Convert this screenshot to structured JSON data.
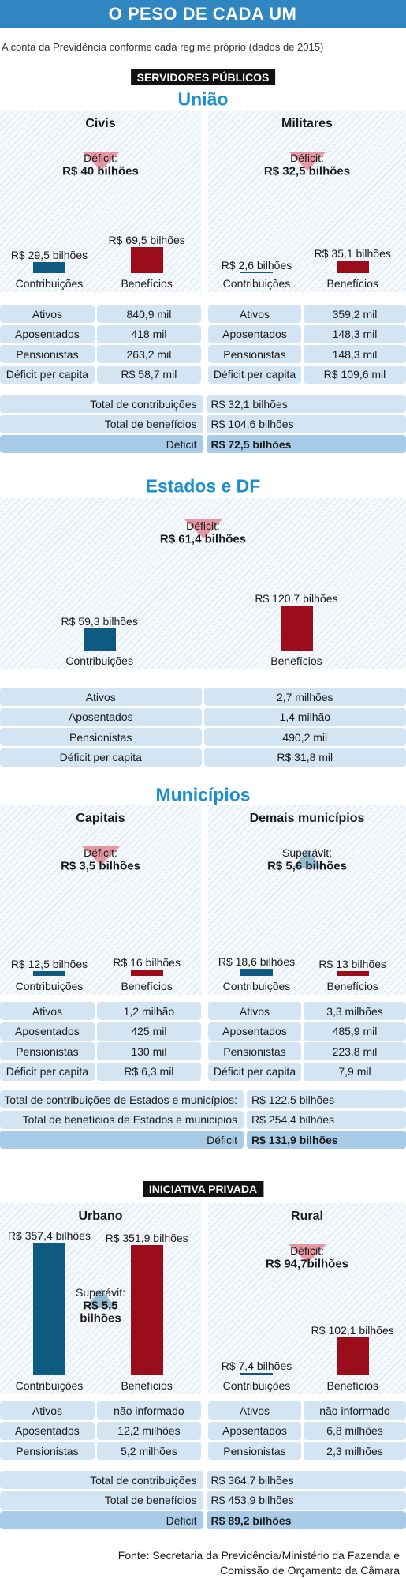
{
  "title": "O PESO DE CADA UM",
  "subtitle": "A conta da Previdência conforme cada regime próprio (dados de 2015)",
  "sections": [
    {
      "banner": "SERVIDORES PÚBLICOS",
      "heading": "União",
      "panels": [
        {
          "name": "Civis",
          "balance_label": "Déficit:",
          "balance_value": "R$ 40 bilhões",
          "contributions": {
            "label": "Contribuições",
            "value": 29.5,
            "value_label": "R$ 29,5 bilhões"
          },
          "benefits": {
            "label": "Benefícios",
            "value": 69.5,
            "value_label": "R$ 69,5 bilhões"
          },
          "rows": [
            [
              "Ativos",
              "840,9 mil"
            ],
            [
              "Aposentados",
              "418 mil"
            ],
            [
              "Pensionistas",
              "263,2 mil"
            ],
            [
              "Déficit per capita",
              "R$ 58,7 mil"
            ]
          ]
        },
        {
          "name": "Militares",
          "balance_label": "Déficit:",
          "balance_value": "R$ 32,5 bilhões",
          "contributions": {
            "label": "Contribuições",
            "value": 2.6,
            "value_label": "R$ 2,6 bilhões"
          },
          "benefits": {
            "label": "Benefícios",
            "value": 35.1,
            "value_label": "R$ 35,1 bilhões"
          },
          "rows": [
            [
              "Ativos",
              "359,2 mil"
            ],
            [
              "Aposentados",
              "148,3 mil"
            ],
            [
              "Pensionistas",
              "148,3 mil"
            ],
            [
              "Déficit per capita",
              "R$ 109,6 mil"
            ]
          ]
        }
      ],
      "totals": [
        [
          "Total de contribuições",
          "R$ 32,1 bilhões"
        ],
        [
          "Total de benefícios",
          "R$ 104,6 bilhões"
        ],
        [
          "Déficit",
          "R$ 72,5 bilhões"
        ]
      ]
    },
    {
      "heading": "Estados e DF",
      "panels": [
        {
          "balance_label": "Déficit:",
          "balance_value": "R$ 61,4 bilhões",
          "contributions": {
            "label": "Contribuições",
            "value": 59.3,
            "value_label": "R$ 59,3 bilhões"
          },
          "benefits": {
            "label": "Benefícios",
            "value": 120.7,
            "value_label": "R$ 120,7 bilhões"
          },
          "rows": [
            [
              "Ativos",
              "2,7 milhões"
            ],
            [
              "Aposentados",
              "1,4 milhão"
            ],
            [
              "Pensionistas",
              "490,2 mil"
            ],
            [
              "Déficit per capita",
              "R$ 31,8 mil"
            ]
          ]
        }
      ]
    },
    {
      "heading": "Municípios",
      "panels": [
        {
          "name": "Capitais",
          "balance_label": "Déficit:",
          "balance_value": "R$ 3,5 bilhões",
          "contributions": {
            "label": "Contribuições",
            "value": 12.5,
            "value_label": "R$ 12,5 bilhões"
          },
          "benefits": {
            "label": "Benefícios",
            "value": 16,
            "value_label": "R$ 16 bilhões"
          },
          "rows": [
            [
              "Ativos",
              "1,2 milhão"
            ],
            [
              "Aposentados",
              "425 mil"
            ],
            [
              "Pensionistas",
              "130 mil"
            ],
            [
              "Déficit per capita",
              "R$ 6,3 mil"
            ]
          ]
        },
        {
          "name": "Demais municípios",
          "balance_label": "Superávit:",
          "balance_value": "R$ 5,6 bilhões",
          "contributions": {
            "label": "Contribuições",
            "value": 18.6,
            "value_label": "R$ 18,6 bilhões"
          },
          "benefits": {
            "label": "Benefícios",
            "value": 13,
            "value_label": "R$ 13 bilhões"
          },
          "rows": [
            [
              "Ativos",
              "3,3 milhões"
            ],
            [
              "Aposentados",
              "485,9 mil"
            ],
            [
              "Pensionistas",
              "223,8 mil"
            ],
            [
              "Déficit per capita",
              "7,9 mil"
            ]
          ]
        }
      ],
      "totals": [
        [
          "Total de contribuições de Estados e municípios:",
          "R$ 122,5 bilhões"
        ],
        [
          "Total de benefícios de Estados e municipios",
          "R$ 254,4 bilhões"
        ],
        [
          "Déficit",
          "R$ 131,9 bilhões"
        ]
      ]
    },
    {
      "banner": "INICIATIVA PRIVADA",
      "panels": [
        {
          "name": "Urbano",
          "balance_label": "Superávit:",
          "balance_value": "R$ 5,5 bilhões",
          "contributions": {
            "label": "Contribuições",
            "value": 357.4,
            "value_label": "R$ 357,4 bilhões"
          },
          "benefits": {
            "label": "Benefícios",
            "value": 351.9,
            "value_label": "R$ 351,9 bilhões"
          },
          "rows": [
            [
              "Ativos",
              "não informado"
            ],
            [
              "Aposentados",
              "12,2 milhões"
            ],
            [
              "Pensionistas",
              "5,2 milhões"
            ]
          ]
        },
        {
          "name": "Rural",
          "balance_label": "Déficit:",
          "balance_value": "R$ 94,7bilhões",
          "contributions": {
            "label": "Contribuições",
            "value": 7.4,
            "value_label": "R$ 7,4 bilhões"
          },
          "benefits": {
            "label": "Benefícios",
            "value": 102.1,
            "value_label": "R$ 102,1 bilhões"
          },
          "rows": [
            [
              "Ativos",
              "não informado"
            ],
            [
              "Aposentados",
              "6,8 milhões"
            ],
            [
              "Pensionistas",
              "2,3 milhões"
            ]
          ]
        }
      ],
      "totals": [
        [
          "Total de contribuições",
          "R$ 364,7 bilhões"
        ],
        [
          "Total de benefícios",
          "R$ 453,9 bilhões"
        ],
        [
          "Déficit",
          "R$ 89,2 bilhões"
        ]
      ]
    }
  ],
  "source": [
    "Fonte: Secretaria da Previdência/Ministério da Fazenda e",
    "Comissão de Orçamento da Câmara"
  ]
}
